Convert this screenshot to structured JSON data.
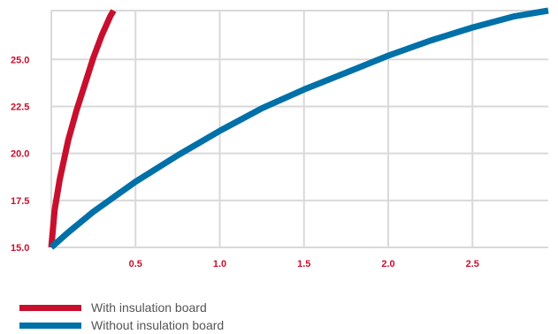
{
  "chart_data": {
    "type": "line",
    "title": "",
    "xlabel": "",
    "ylabel": "",
    "xlim": [
      0.0,
      2.95
    ],
    "ylim": [
      15.0,
      27.6
    ],
    "x_ticks": [
      "0.5",
      "1.0",
      "1.5",
      "2.0",
      "2.5"
    ],
    "y_ticks": [
      "15.0",
      "17.5",
      "20.0",
      "22.5",
      "25.0"
    ],
    "grid": true,
    "legend_position": "bottom-left",
    "series": [
      {
        "name": "With insulation board",
        "color": "#c8102e",
        "x": [
          0.0,
          0.02,
          0.05,
          0.1,
          0.15,
          0.2,
          0.25,
          0.3,
          0.35,
          0.37
        ],
        "y": [
          15.0,
          17.0,
          18.6,
          20.7,
          22.3,
          23.7,
          25.1,
          26.3,
          27.3,
          27.6
        ]
      },
      {
        "name": "Without insulation board",
        "color": "#0070a8",
        "x": [
          0.0,
          0.1,
          0.25,
          0.5,
          0.75,
          1.0,
          1.25,
          1.5,
          1.75,
          2.0,
          2.25,
          2.5,
          2.75,
          2.95
        ],
        "y": [
          15.0,
          15.8,
          16.9,
          18.5,
          19.9,
          21.2,
          22.4,
          23.4,
          24.3,
          25.2,
          26.0,
          26.7,
          27.3,
          27.6
        ]
      }
    ]
  }
}
